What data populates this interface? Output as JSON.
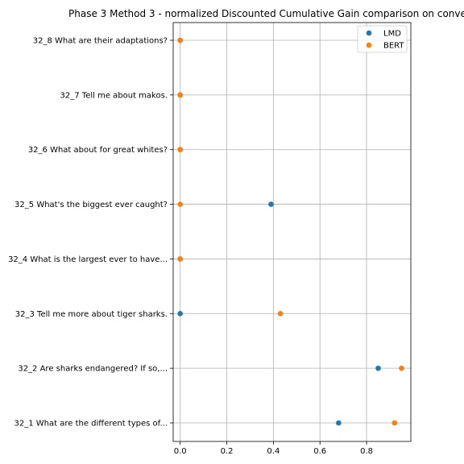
{
  "chart_data": {
    "type": "scatter",
    "title": "Phase 3 Method 3 - normalized Discounted Cumulative Gain comparison on conve",
    "xlabel": "",
    "ylabel": "",
    "xlim": [
      -0.03,
      0.99
    ],
    "x_ticks": [
      "0.0",
      "0.2",
      "0.4",
      "0.6",
      "0.8"
    ],
    "x_tick_values": [
      0.0,
      0.2,
      0.4,
      0.6,
      0.8
    ],
    "categories": [
      "32_1 What are the different types of...",
      "32_2 Are sharks endangered? If so,...",
      "32_3 Tell me more about tiger sharks.",
      "32_4 What is the largest ever to have...",
      "32_5 What's the biggest ever caught?",
      "32_6 What about for great whites?",
      "32_7 Tell me about makos.",
      "32_8 What are their adaptations?"
    ],
    "grid": true,
    "legend_position": "top-right",
    "series": [
      {
        "name": "LMD",
        "color": "#1f77b4",
        "values": [
          0.68,
          0.85,
          0.0,
          0.0,
          0.39,
          0.0,
          0.0,
          0.0
        ]
      },
      {
        "name": "BERT",
        "color": "#ff7f0e",
        "values": [
          0.92,
          0.95,
          0.43,
          0.0,
          0.0,
          0.0,
          0.0,
          0.0
        ]
      }
    ]
  }
}
